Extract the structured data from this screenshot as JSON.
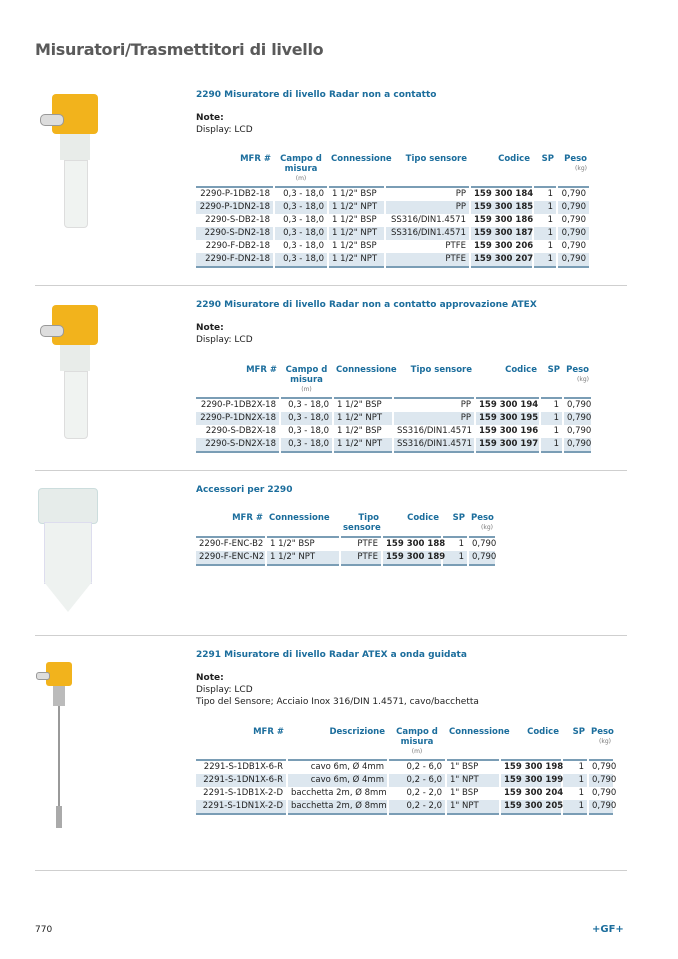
{
  "page_title": "Misuratori/Trasmettitori di livello",
  "sections": [
    {
      "title": "2290 Misuratore di livello Radar non a contatto",
      "note_label": "Note:",
      "notes": [
        "Display: LCD"
      ],
      "table": {
        "columns": [
          {
            "label": "MFR #"
          },
          {
            "label": "Campo d misura",
            "unit": "(m)"
          },
          {
            "label": "Connessione"
          },
          {
            "label": "Tipo sensore"
          },
          {
            "label": "Codice"
          },
          {
            "label": "SP"
          },
          {
            "label": "Peso",
            "unit": "(kg)"
          }
        ],
        "rows": [
          [
            "2290-P-1DB2-18",
            "0,3 - 18,0",
            "1 1/2\" BSP",
            "PP",
            "159 300 184",
            "1",
            "0,790"
          ],
          [
            "2290-P-1DN2-18",
            "0,3 - 18,0",
            "1 1/2\" NPT",
            "PP",
            "159 300 185",
            "1",
            "0,790"
          ],
          [
            "2290-S-DB2-18",
            "0,3 - 18,0",
            "1 1/2\" BSP",
            "SS316/DIN1.4571",
            "159 300 186",
            "1",
            "0,790"
          ],
          [
            "2290-S-DN2-18",
            "0,3 - 18,0",
            "1 1/2\" NPT",
            "SS316/DIN1.4571",
            "159 300 187",
            "1",
            "0,790"
          ],
          [
            "2290-F-DB2-18",
            "0,3 - 18,0",
            "1 1/2\" BSP",
            "PTFE",
            "159 300 206",
            "1",
            "0,790"
          ],
          [
            "2290-F-DN2-18",
            "0,3 - 18,0",
            "1 1/2\" NPT",
            "PTFE",
            "159 300 207",
            "1",
            "0,790"
          ]
        ]
      }
    },
    {
      "title": "2290 Misuratore di livello Radar non a contatto approvazione ATEX",
      "note_label": "Note:",
      "notes": [
        "Display: LCD"
      ],
      "table": {
        "columns": [
          {
            "label": "MFR #"
          },
          {
            "label": "Campo d misura",
            "unit": "(m)"
          },
          {
            "label": "Connessione"
          },
          {
            "label": "Tipo sensore"
          },
          {
            "label": "Codice"
          },
          {
            "label": "SP"
          },
          {
            "label": "Peso",
            "unit": "(kg)"
          }
        ],
        "rows": [
          [
            "2290-P-1DB2X-18",
            "0,3 - 18,0",
            "1 1/2\" BSP",
            "PP",
            "159 300 194",
            "1",
            "0,790"
          ],
          [
            "2290-P-1DN2X-18",
            "0,3 - 18,0",
            "1 1/2\" NPT",
            "PP",
            "159 300 195",
            "1",
            "0,790"
          ],
          [
            "2290-S-DB2X-18",
            "0,3 - 18,0",
            "1 1/2\" BSP",
            "SS316/DIN1.4571",
            "159 300 196",
            "1",
            "0,790"
          ],
          [
            "2290-S-DN2X-18",
            "0,3 - 18,0",
            "1 1/2\" NPT",
            "SS316/DIN1.4571",
            "159 300 197",
            "1",
            "0,790"
          ]
        ]
      }
    },
    {
      "title": "Accessori per 2290",
      "notes": [],
      "table": {
        "columns": [
          {
            "label": "MFR #"
          },
          {
            "label": "Connessione"
          },
          {
            "label": "Tipo sensore"
          },
          {
            "label": "Codice"
          },
          {
            "label": "SP"
          },
          {
            "label": "Peso",
            "unit": "(kg)"
          }
        ],
        "rows": [
          [
            "2290-F-ENC-B2",
            "1 1/2\" BSP",
            "PTFE",
            "159 300 188",
            "1",
            "0,790"
          ],
          [
            "2290-F-ENC-N2",
            "1 1/2\" NPT",
            "PTFE",
            "159 300 189",
            "1",
            "0,790"
          ]
        ]
      }
    },
    {
      "title": "2291 Misuratore di livello Radar ATEX a onda guidata",
      "note_label": "Note:",
      "notes": [
        "Display: LCD",
        "Tipo del Sensore; Acciaio Inox 316/DIN 1.4571, cavo/bacchetta"
      ],
      "table": {
        "columns": [
          {
            "label": "MFR #"
          },
          {
            "label": "Descrizione"
          },
          {
            "label": "Campo d misura",
            "unit": "(m)"
          },
          {
            "label": "Connessione"
          },
          {
            "label": "Codice"
          },
          {
            "label": "SP"
          },
          {
            "label": "Peso",
            "unit": "(kg)"
          }
        ],
        "rows": [
          [
            "2291-S-1DB1X-6-R",
            "cavo 6m, Ø 4mm",
            "0,2 - 6,0",
            "1\" BSP",
            "159 300 198",
            "1",
            "0,790"
          ],
          [
            "2291-S-1DN1X-6-R",
            "cavo 6m, Ø 4mm",
            "0,2 - 6,0",
            "1\" NPT",
            "159 300 199",
            "1",
            "0,790"
          ],
          [
            "2291-S-1DB1X-2-D",
            "bacchetta 2m, Ø 8mm",
            "0,2 - 2,0",
            "1\" BSP",
            "159 300 204",
            "1",
            "0,790"
          ],
          [
            "2291-S-1DN1X-2-D",
            "bacchetta 2m, Ø 8mm",
            "0,2 - 2,0",
            "1\" NPT",
            "159 300 205",
            "1",
            "0,790"
          ]
        ]
      }
    }
  ],
  "footer": {
    "page_number": "770",
    "logo": "+GF+"
  },
  "colors": {
    "accent": "#1b6d9c",
    "row_alt": "#dde7ef",
    "housing": "#f2b31c"
  }
}
